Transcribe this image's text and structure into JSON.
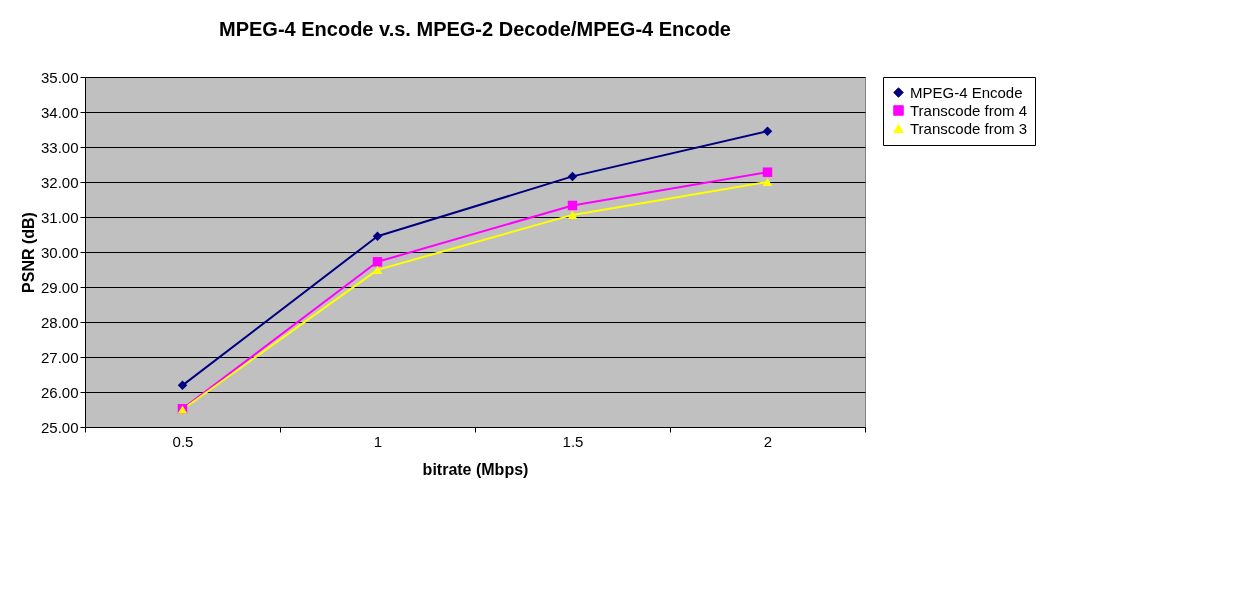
{
  "chart_data": {
    "type": "line",
    "title": "MPEG-4 Encode v.s. MPEG-2 Decode/MPEG-4 Encode",
    "xlabel": "bitrate (Mbps)",
    "ylabel": "PSNR (dB)",
    "categories": [
      "0.5",
      "1",
      "1.5",
      "2"
    ],
    "series": [
      {
        "name": "MPEG-4 Encode",
        "color": "#000080",
        "marker": "diamond",
        "values": [
          26.19,
          30.45,
          32.16,
          33.45
        ]
      },
      {
        "name": "Transcode from 4",
        "color": "#ff00ff",
        "marker": "square",
        "values": [
          25.52,
          29.72,
          31.33,
          32.28
        ]
      },
      {
        "name": "Transcode from 3",
        "color": "#ffff00",
        "marker": "triangle",
        "values": [
          25.5,
          29.49,
          31.06,
          32.0
        ]
      }
    ],
    "ylim": [
      25,
      35
    ],
    "yticks": [
      {
        "value": 25,
        "label": "25.00"
      },
      {
        "value": 26,
        "label": "26.00"
      },
      {
        "value": 27,
        "label": "27.00"
      },
      {
        "value": 28,
        "label": "28.00"
      },
      {
        "value": 29,
        "label": "29.00"
      },
      {
        "value": 30,
        "label": "30.00"
      },
      {
        "value": 31,
        "label": "31.00"
      },
      {
        "value": 32,
        "label": "32.00"
      },
      {
        "value": 33,
        "label": "33.00"
      },
      {
        "value": 34,
        "label": "34.00"
      },
      {
        "value": 35,
        "label": "35.00"
      }
    ],
    "grid": "y",
    "legend": "right",
    "line_style": "solid"
  }
}
